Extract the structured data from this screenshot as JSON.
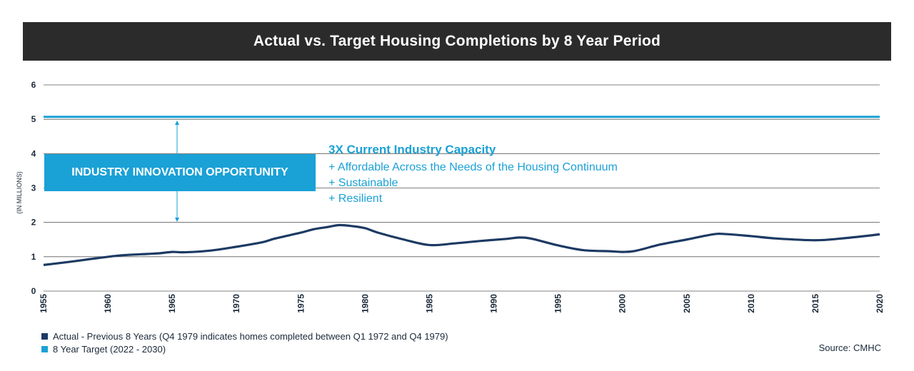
{
  "title": "Actual vs. Target Housing Completions by 8 Year Period",
  "callout": {
    "box_label": "INDUSTRY INNOVATION OPPORTUNITY",
    "heading": "3X Current Industry Capacity",
    "lines": [
      "+ Affordable Across the Needs of the Housing Continuum",
      "+ Sustainable",
      "+ Resilient"
    ]
  },
  "legend": {
    "actual": "Actual - Previous 8 Years (Q4 1979 indicates homes completed between Q1 1972 and Q4 1979)",
    "target": "8 Year Target (2022 - 2030)"
  },
  "source": "Source: CMHC",
  "colors": {
    "actual": "#1c3a63",
    "target": "#1aa1d6",
    "title_bar": "#2b2b2b",
    "grid": "#5a5a5a"
  },
  "chart_data": {
    "type": "line",
    "ylabel": "(IN MILLIONS)",
    "xlim": [
      1955,
      2020
    ],
    "ylim": [
      0,
      6
    ],
    "y_ticks": [
      0,
      1,
      2,
      3,
      4,
      5,
      6
    ],
    "x_ticks": [
      1955,
      1960,
      1965,
      1970,
      1975,
      1980,
      1985,
      1990,
      1995,
      2000,
      2005,
      2010,
      2015,
      2020
    ],
    "grid": "horizontal",
    "series": [
      {
        "name": "Actual - Previous 8 Years (Q4 1979 indicates homes completed between Q1 1972 and Q4 1979)",
        "x": [
          1955,
          1957,
          1959,
          1961,
          1963,
          1964,
          1965,
          1966,
          1968,
          1970,
          1972,
          1973,
          1975,
          1976,
          1977,
          1978,
          1979,
          1980,
          1981,
          1983,
          1985,
          1987,
          1989,
          1991,
          1992,
          1993,
          1995,
          1997,
          1999,
          2000,
          2001,
          2003,
          2005,
          2007,
          2008,
          2010,
          2012,
          2015,
          2017,
          2020
        ],
        "y": [
          0.76,
          0.85,
          0.95,
          1.04,
          1.08,
          1.1,
          1.14,
          1.13,
          1.18,
          1.29,
          1.42,
          1.53,
          1.7,
          1.8,
          1.86,
          1.92,
          1.89,
          1.83,
          1.7,
          1.5,
          1.34,
          1.39,
          1.46,
          1.52,
          1.56,
          1.52,
          1.33,
          1.19,
          1.16,
          1.14,
          1.17,
          1.36,
          1.5,
          1.65,
          1.66,
          1.6,
          1.53,
          1.48,
          1.53,
          1.65
        ]
      },
      {
        "name": "8 Year Target (2022 - 2030)",
        "x": [
          1955,
          2020
        ],
        "y": [
          5.07,
          5.07
        ]
      }
    ]
  }
}
